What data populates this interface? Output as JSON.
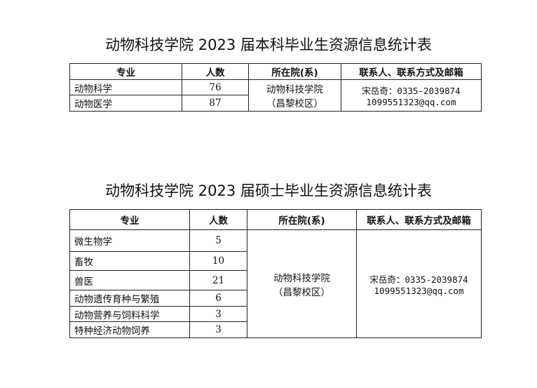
{
  "table1": {
    "title": "动物科技学院 2023 届本科毕业生资源信息统计表",
    "headers": [
      "专业",
      "人数",
      "所在院(系)",
      "联系人、联系方式及邮箱"
    ],
    "rows": [
      {
        "major": "动物科学",
        "count": "76"
      },
      {
        "major": "动物医学",
        "count": "87"
      }
    ],
    "college": "动物科技学院",
    "campus": "（昌黎校区）",
    "contact": "宋岳奇：0335-2039874",
    "email": "1099551323@qq.com"
  },
  "table2": {
    "title": "动物科技学院 2023 届硕士毕业生资源信息统计表",
    "headers": [
      "专业",
      "人数",
      "所在院(系)",
      "联系人、联系方式及邮箱"
    ],
    "rows": [
      {
        "major": "微生物学",
        "count": "5"
      },
      {
        "major": "畜牧",
        "count": "10"
      },
      {
        "major": "兽医",
        "count": "21"
      },
      {
        "major": "动物遗传育种与繁殖",
        "count": "6"
      },
      {
        "major": "动物营养与饲料科学",
        "count": "3"
      },
      {
        "major": "特种经济动物饲养",
        "count": "3"
      }
    ],
    "college": "动物科技学院",
    "campus": "（昌黎校区）",
    "contact": "宋岳奇：0335-2039874",
    "email": "1099551323@qq.com"
  }
}
